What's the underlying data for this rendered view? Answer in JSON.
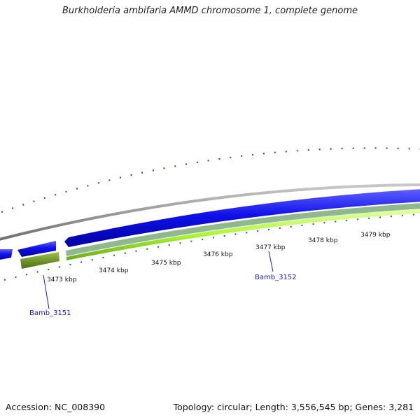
{
  "title": "Burkholderia ambifaria AMMD chromosome 1, complete genome",
  "scale_ticks": [
    {
      "label": "3473 kbp"
    },
    {
      "label": "3474 kbp"
    },
    {
      "label": "3475 kbp"
    },
    {
      "label": "3476 kbp"
    },
    {
      "label": "3477 kbp"
    },
    {
      "label": "3478 kbp"
    },
    {
      "label": "3479 kbp"
    }
  ],
  "genes": [
    {
      "label": "Bamb_3151"
    },
    {
      "label": "Bamb_3152"
    }
  ],
  "colors": {
    "backbone": "#8c8c8c",
    "cds_forward": "#1010e8",
    "cds_reverse": "#a8f040",
    "gene_olive": "#6b8c23",
    "gc_skew_ticks": "#1e6e1e",
    "label_blue": "#1a1acc"
  },
  "footer": {
    "accession": "Accession: NC_008390",
    "summary": "Topology: circular; Length: 3,556,545 bp; Genes: 3,281"
  }
}
